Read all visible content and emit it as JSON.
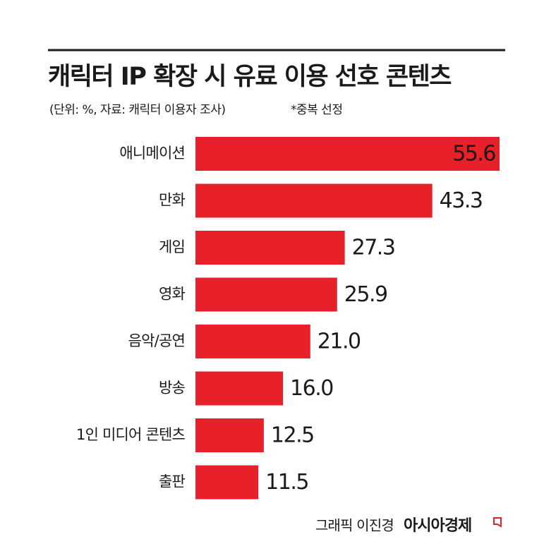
{
  "chart_data": {
    "type": "bar",
    "orientation": "horizontal",
    "title": "캐릭터 IP 확장 시 유료 이용 선호 콘텐츠",
    "subtitle": "(단위: %, 자료: 캐릭터 이용자 조사)",
    "note": "*중복 선정",
    "credit": "그래픽 이진경",
    "source": "아시아경제",
    "categories": [
      "애니메이션",
      "만화",
      "게임",
      "영화",
      "음악/공연",
      "방송",
      "1인 미디어 콘텐츠",
      "출판"
    ],
    "values": [
      55.6,
      43.3,
      27.3,
      25.9,
      21.0,
      16.0,
      12.5,
      11.5
    ],
    "value_labels": [
      "55.6",
      "43.3",
      "27.3",
      "25.9",
      "21.0",
      "16.0",
      "12.5",
      "11.5"
    ],
    "color": "#e8202a"
  }
}
